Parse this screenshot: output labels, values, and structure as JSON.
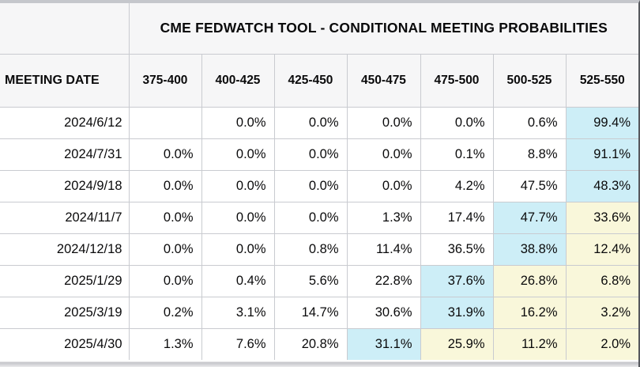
{
  "table": {
    "title": "CME FEDWATCH TOOL - CONDITIONAL MEETING PROBABILITIES",
    "corner_label": "",
    "date_column_header": "MEETING DATE",
    "rate_range_headers": [
      "375-400",
      "400-425",
      "425-450",
      "450-475",
      "475-500",
      "500-525",
      "525-550"
    ],
    "rows": [
      {
        "date": "2024/6/12",
        "values": [
          "",
          "0.0%",
          "0.0%",
          "0.0%",
          "0.0%",
          "0.6%",
          "99.4%"
        ],
        "highlights": [
          "none",
          "none",
          "none",
          "none",
          "none",
          "none",
          "blue"
        ]
      },
      {
        "date": "2024/7/31",
        "values": [
          "0.0%",
          "0.0%",
          "0.0%",
          "0.0%",
          "0.1%",
          "8.8%",
          "91.1%"
        ],
        "highlights": [
          "none",
          "none",
          "none",
          "none",
          "none",
          "none",
          "blue"
        ]
      },
      {
        "date": "2024/9/18",
        "values": [
          "0.0%",
          "0.0%",
          "0.0%",
          "0.0%",
          "4.2%",
          "47.5%",
          "48.3%"
        ],
        "highlights": [
          "none",
          "none",
          "none",
          "none",
          "none",
          "none",
          "blue"
        ]
      },
      {
        "date": "2024/11/7",
        "values": [
          "0.0%",
          "0.0%",
          "0.0%",
          "1.3%",
          "17.4%",
          "47.7%",
          "33.6%"
        ],
        "highlights": [
          "none",
          "none",
          "none",
          "none",
          "none",
          "blue",
          "cream"
        ]
      },
      {
        "date": "2024/12/18",
        "values": [
          "0.0%",
          "0.0%",
          "0.8%",
          "11.4%",
          "36.5%",
          "38.8%",
          "12.4%"
        ],
        "highlights": [
          "none",
          "none",
          "none",
          "none",
          "none",
          "blue",
          "cream"
        ]
      },
      {
        "date": "2025/1/29",
        "values": [
          "0.0%",
          "0.4%",
          "5.6%",
          "22.8%",
          "37.6%",
          "26.8%",
          "6.8%"
        ],
        "highlights": [
          "none",
          "none",
          "none",
          "none",
          "blue",
          "cream",
          "cream"
        ]
      },
      {
        "date": "2025/3/19",
        "values": [
          "0.2%",
          "3.1%",
          "14.7%",
          "30.6%",
          "31.9%",
          "16.2%",
          "3.2%"
        ],
        "highlights": [
          "none",
          "none",
          "none",
          "none",
          "blue",
          "cream",
          "cream"
        ]
      },
      {
        "date": "2025/4/30",
        "values": [
          "1.3%",
          "7.6%",
          "20.8%",
          "31.1%",
          "25.9%",
          "11.2%",
          "2.0%"
        ],
        "highlights": [
          "none",
          "none",
          "none",
          "blue",
          "cream",
          "cream",
          "cream"
        ]
      }
    ],
    "highlight_colors": {
      "none": "#ffffff",
      "blue": "#cdeef7",
      "cream": "#f9f7da"
    }
  },
  "chart_data": {
    "type": "table",
    "title": "CME FEDWATCH TOOL - CONDITIONAL MEETING PROBABILITIES",
    "row_header": "MEETING DATE",
    "columns": [
      "375-400",
      "400-425",
      "425-450",
      "450-475",
      "475-500",
      "500-525",
      "525-550"
    ],
    "units": "%",
    "rows": [
      {
        "meeting_date": "2024/6/12",
        "probabilities_pct": [
          null,
          0.0,
          0.0,
          0.0,
          0.0,
          0.6,
          99.4
        ]
      },
      {
        "meeting_date": "2024/7/31",
        "probabilities_pct": [
          0.0,
          0.0,
          0.0,
          0.0,
          0.1,
          8.8,
          91.1
        ]
      },
      {
        "meeting_date": "2024/9/18",
        "probabilities_pct": [
          0.0,
          0.0,
          0.0,
          0.0,
          4.2,
          47.5,
          48.3
        ]
      },
      {
        "meeting_date": "2024/11/7",
        "probabilities_pct": [
          0.0,
          0.0,
          0.0,
          1.3,
          17.4,
          47.7,
          33.6
        ]
      },
      {
        "meeting_date": "2024/12/18",
        "probabilities_pct": [
          0.0,
          0.0,
          0.8,
          11.4,
          36.5,
          38.8,
          12.4
        ]
      },
      {
        "meeting_date": "2025/1/29",
        "probabilities_pct": [
          0.0,
          0.4,
          5.6,
          22.8,
          37.6,
          26.8,
          6.8
        ]
      },
      {
        "meeting_date": "2025/3/19",
        "probabilities_pct": [
          0.2,
          3.1,
          14.7,
          30.6,
          31.9,
          16.2,
          3.2
        ]
      },
      {
        "meeting_date": "2025/4/30",
        "probabilities_pct": [
          1.3,
          7.6,
          20.8,
          31.1,
          25.9,
          11.2,
          2.0
        ]
      }
    ],
    "highlighted_cells_note": {
      "blue_cells_hex": "#cdeef7",
      "cream_cells_hex": "#f9f7da"
    }
  }
}
